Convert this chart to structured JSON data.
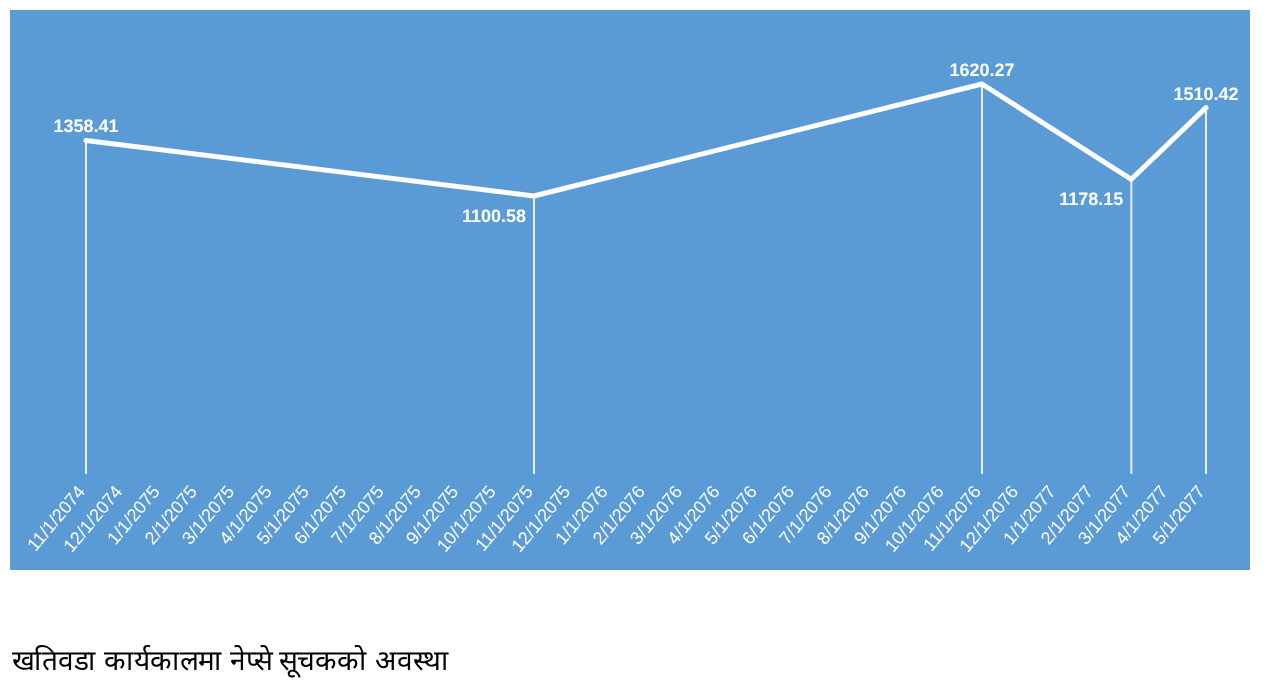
{
  "chart_data": {
    "type": "line",
    "title": "खतिवडा कार्यकालमा नेप्से सूचकको अवस्था",
    "categories": [
      "11/1/2074",
      "12/1/2074",
      "1/1/2075",
      "2/1/2075",
      "3/1/2075",
      "4/1/2075",
      "5/1/2075",
      "6/1/2075",
      "7/1/2075",
      "8/1/2075",
      "9/1/2075",
      "10/1/2075",
      "11/1/2075",
      "12/1/2075",
      "1/1/2076",
      "2/1/2076",
      "3/1/2076",
      "4/1/2076",
      "5/1/2076",
      "6/1/2076",
      "7/1/2076",
      "8/1/2076",
      "9/1/2076",
      "10/1/2076",
      "11/1/2076",
      "12/1/2076",
      "1/1/2077",
      "2/1/2077",
      "3/1/2077",
      "4/1/2077",
      "5/1/2077"
    ],
    "values": [
      1358.41,
      null,
      null,
      null,
      null,
      null,
      null,
      null,
      null,
      null,
      null,
      null,
      1100.58,
      null,
      null,
      null,
      null,
      null,
      null,
      null,
      null,
      null,
      null,
      null,
      1620.27,
      null,
      null,
      null,
      1178.15,
      null,
      1510.42
    ],
    "color": "#ffffff",
    "data_labels": true,
    "grid": "x"
  }
}
